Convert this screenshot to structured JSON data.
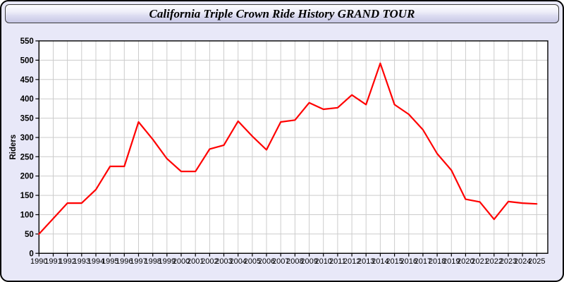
{
  "window": {
    "title": "California Triple Crown Ride History GRAND TOUR"
  },
  "colors": {
    "page_background": "#e8e8f8",
    "titlebar_top": "#fdfdff",
    "titlebar_bottom": "#c7c7e5",
    "plot_background": "#ffffff",
    "grid": "#cccccc",
    "axis": "#000000",
    "tick_text": "#000000",
    "line": "#ff0000"
  },
  "chart_data": {
    "type": "line",
    "title": "California Triple Crown Ride History GRAND TOUR",
    "xlabel": "",
    "ylabel": "Riders",
    "ylim": [
      0,
      550
    ],
    "ytick_step": 50,
    "grid": true,
    "legend": false,
    "x": [
      1990,
      1991,
      1992,
      1993,
      1994,
      1995,
      1996,
      1997,
      1998,
      1999,
      2000,
      2001,
      2002,
      2003,
      2004,
      2005,
      2006,
      2007,
      2008,
      2009,
      2010,
      2011,
      2012,
      2013,
      2014,
      2015,
      2016,
      2017,
      2018,
      2019,
      2020,
      2021,
      2022,
      2023,
      2024,
      2025
    ],
    "series": [
      {
        "name": "Riders",
        "color": "#ff0000",
        "values": [
          50,
          90,
          130,
          130,
          165,
          225,
          225,
          340,
          295,
          245,
          212,
          212,
          270,
          280,
          342,
          303,
          268,
          340,
          345,
          390,
          373,
          377,
          410,
          385,
          492,
          385,
          360,
          320,
          258,
          215,
          140,
          133,
          88,
          134,
          130,
          128
        ]
      }
    ]
  }
}
